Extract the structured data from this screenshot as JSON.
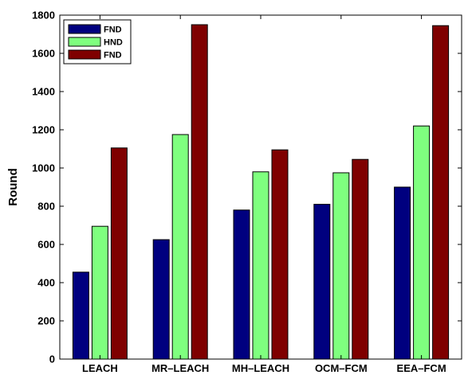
{
  "chart_data": {
    "type": "bar",
    "title": "",
    "xlabel": "",
    "ylabel": "Round",
    "ylim": [
      0,
      1800
    ],
    "yticks": [
      0,
      200,
      400,
      600,
      800,
      1000,
      1200,
      1400,
      1600,
      1800
    ],
    "categories": [
      "LEACH",
      "MR–LEACH",
      "MH–LEACH",
      "OCM–FCM",
      "EEA–FCM"
    ],
    "series": [
      {
        "name": "FND",
        "color": "#00007f",
        "values": [
          455,
          625,
          780,
          810,
          900
        ]
      },
      {
        "name": "HND",
        "color": "#7fff7f",
        "values": [
          695,
          1175,
          980,
          975,
          1220
        ]
      },
      {
        "name": "FND",
        "color": "#7f0000",
        "values": [
          1105,
          1750,
          1095,
          1045,
          1745
        ]
      }
    ],
    "grid": false,
    "legend": "top-left"
  }
}
